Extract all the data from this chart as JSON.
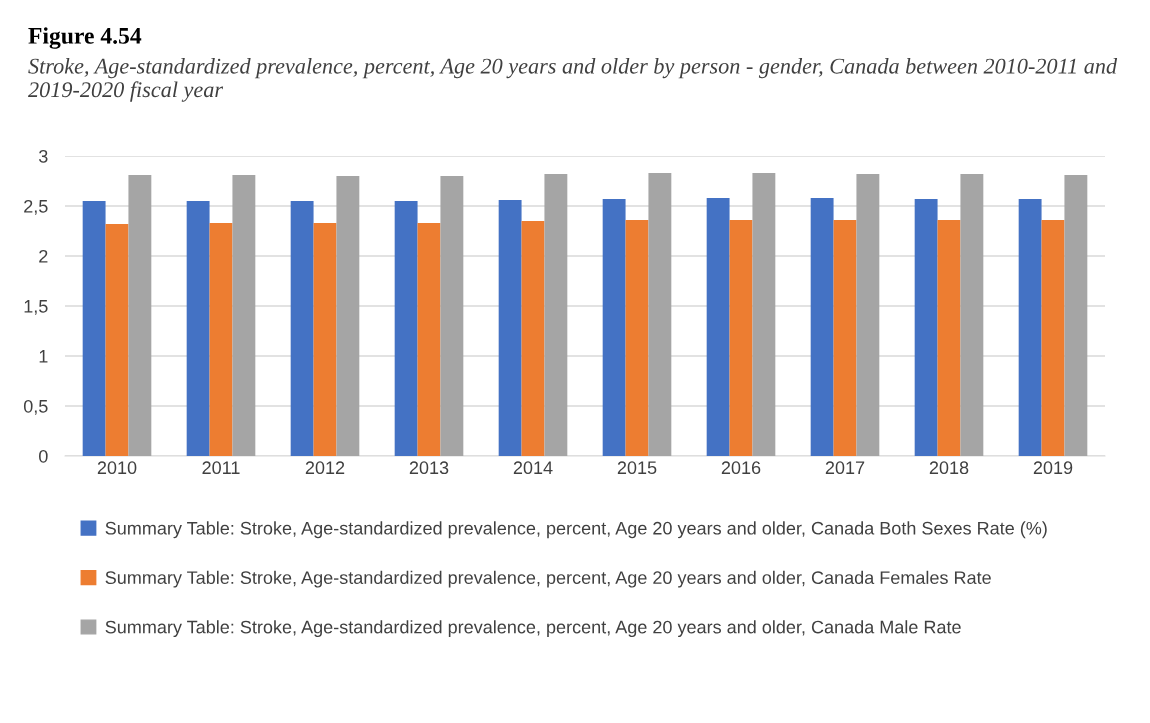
{
  "chart_data": {
    "type": "bar",
    "title": "Figure 4.54",
    "subtitle": "Stroke, Age-standardized prevalence, percent, Age 20 years and older by person - gender, Canada between 2010-2011 and 2019-2020 fiscal year",
    "categories": [
      "2010",
      "2011",
      "2012",
      "2013",
      "2014",
      "2015",
      "2016",
      "2017",
      "2018",
      "2019"
    ],
    "series": [
      {
        "name": "Summary Table: Stroke, Age-standardized prevalence, percent, Age 20 years and older, Canada Both Sexes Rate (%)",
        "color": "#4472c4",
        "values": [
          2.55,
          2.55,
          2.55,
          2.55,
          2.56,
          2.57,
          2.58,
          2.58,
          2.57,
          2.57
        ]
      },
      {
        "name": "Summary Table: Stroke, Age-standardized prevalence, percent, Age 20 years and older, Canada Females Rate",
        "color": "#ed7d31",
        "values": [
          2.32,
          2.33,
          2.33,
          2.33,
          2.35,
          2.36,
          2.36,
          2.36,
          2.36,
          2.36
        ]
      },
      {
        "name": "Summary Table: Stroke, Age-standardized prevalence, percent, Age 20 years and older, Canada Male Rate",
        "color": "#a5a5a5",
        "values": [
          2.81,
          2.81,
          2.8,
          2.8,
          2.82,
          2.83,
          2.83,
          2.82,
          2.82,
          2.81
        ]
      }
    ],
    "ylim": [
      0,
      3
    ],
    "yticks": [
      0,
      {
        "value": 0.5,
        "label": "0,5"
      },
      1,
      {
        "value": 1.5,
        "label": "1,5"
      },
      2,
      {
        "value": 2.5,
        "label": "2,5"
      },
      3
    ],
    "grid": "y",
    "legend": "bottom"
  }
}
